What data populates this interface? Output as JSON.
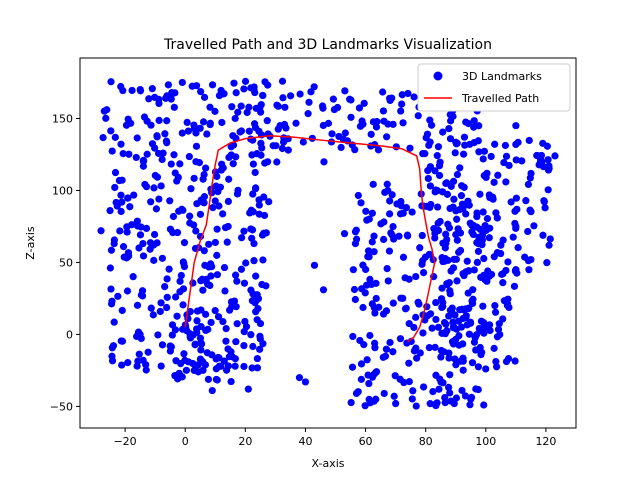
{
  "chart_data": {
    "type": "scatter",
    "title": "Travelled Path and 3D Landmarks Visualization",
    "xlabel": "X-axis",
    "ylabel": "Z-axis",
    "xlim": [
      -35,
      130
    ],
    "ylim": [
      -65,
      192
    ],
    "x_ticks": [
      -20,
      0,
      20,
      40,
      60,
      80,
      100,
      120
    ],
    "y_ticks": [
      -50,
      0,
      50,
      100,
      150
    ],
    "grid": false,
    "legend_position": "top-right",
    "series": [
      {
        "name": "3D Landmarks",
        "kind": "scatter",
        "color": "#0000ff",
        "regions": [
          {
            "x_range": [
              -28,
              48
            ],
            "z_range": [
              118,
              176
            ]
          },
          {
            "x_range": [
              48,
              98
            ],
            "z_range": [
              128,
              170
            ]
          },
          {
            "x_range": [
              -25,
              28
            ],
            "z_range": [
              -25,
              125
            ]
          },
          {
            "x_range": [
              -5,
              18
            ],
            "z_range": [
              -35,
              10
            ]
          },
          {
            "x_range": [
              55,
              100
            ],
            "z_range": [
              -50,
              105
            ]
          },
          {
            "x_range": [
              78,
              122
            ],
            "z_range": [
              40,
              138
            ]
          },
          {
            "x_range": [
              85,
              110
            ],
            "z_range": [
              -25,
              45
            ]
          }
        ],
        "outliers": [
          [
            -28,
            72
          ],
          [
            -25,
            86
          ],
          [
            -16,
            -22
          ],
          [
            -14,
            -18
          ],
          [
            -8,
            -22
          ],
          [
            -5,
            -8
          ],
          [
            -15,
            0
          ],
          [
            -2,
            -27
          ],
          [
            3,
            -25
          ],
          [
            9,
            -39
          ],
          [
            21,
            -38
          ],
          [
            66,
            66
          ],
          [
            53,
            70
          ],
          [
            43,
            48
          ],
          [
            46,
            31
          ],
          [
            38,
            -30
          ],
          [
            40,
            -33
          ],
          [
            110,
            145
          ],
          [
            123,
            124
          ],
          [
            115,
            52
          ],
          [
            110,
            75
          ],
          [
            105,
            62
          ],
          [
            72,
            160
          ],
          [
            68,
            164
          ],
          [
            121,
            117
          ],
          [
            110,
            45
          ],
          [
            95,
            -45
          ],
          [
            70,
            -48
          ],
          [
            103,
            20
          ],
          [
            88,
            -28
          ]
        ]
      },
      {
        "name": "Travelled Path",
        "kind": "line",
        "color": "#ff0000",
        "x": [
          0,
          1,
          2,
          3,
          5,
          7,
          8,
          9,
          10,
          11,
          15,
          20,
          28,
          36,
          45,
          55,
          65,
          72,
          77,
          78,
          78.5,
          79,
          80,
          81,
          82,
          83,
          82,
          81,
          80,
          79,
          78,
          76,
          74
        ],
        "y": [
          5,
          20,
          35,
          50,
          65,
          76,
          90,
          105,
          118,
          128,
          133,
          136,
          138,
          137,
          135,
          133,
          131,
          129,
          124,
          115,
          100,
          90,
          78,
          67,
          60,
          50,
          40,
          30,
          20,
          12,
          5,
          -2,
          -5
        ]
      }
    ]
  }
}
